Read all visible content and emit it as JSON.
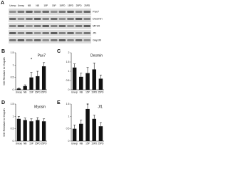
{
  "blot": {
    "panel": "A",
    "lanes": [
      "Unexp",
      "Unexp",
      "NB",
      "NB",
      "15P",
      "15P",
      "15PD",
      "15PD",
      "25PD",
      "25PD"
    ],
    "rows": [
      "Pax7",
      "Desmin",
      "MF20",
      "Jf1",
      "Gapdh"
    ]
  },
  "chart_data": [
    {
      "type": "bar",
      "panel": "B",
      "title": "Pax7",
      "ylabel": "OD Relative to Gapdh",
      "categories": [
        "Unexp",
        "NB",
        "15P",
        "15PD",
        "25PD"
      ],
      "values": [
        0.05,
        0.15,
        0.5,
        0.55,
        0.95
      ],
      "errors": [
        0.02,
        0.05,
        0.2,
        0.2,
        0.15
      ],
      "color": "#111111",
      "ylim": [
        0,
        1.5
      ],
      "yticks": [
        0,
        0.5,
        1,
        1.5
      ],
      "annotation": "*"
    },
    {
      "type": "bar",
      "panel": "C",
      "title": "Desmin",
      "categories": [
        "Unexp",
        "NB",
        "15P",
        "15PD",
        "25PD"
      ],
      "values": [
        1.2,
        0.7,
        0.9,
        1.1,
        0.6
      ],
      "errors": [
        0.2,
        0.2,
        0.3,
        0.35,
        0.2
      ],
      "color": "#111111",
      "ylim": [
        0,
        2
      ],
      "yticks": [
        0,
        0.5,
        1,
        1.5,
        2
      ]
    },
    {
      "type": "bar",
      "panel": "D",
      "title": "Myosin",
      "ylabel": "OD Relative to Gapdh",
      "categories": [
        "Unexp",
        "NB",
        "15P",
        "15PD",
        "25PD"
      ],
      "values": [
        0.9,
        0.85,
        0.8,
        0.85,
        0.8
      ],
      "errors": [
        0.1,
        0.08,
        0.1,
        0.1,
        0.1
      ],
      "color": "#111111",
      "ylim": [
        0,
        1.5
      ],
      "yticks": [
        0,
        0.5,
        1,
        1.5
      ]
    },
    {
      "type": "bar",
      "panel": "E",
      "title": "Jf1",
      "categories": [
        "Unexp",
        "NB",
        "15P",
        "15PD",
        "25PD"
      ],
      "values": [
        0.5,
        0.7,
        1.3,
        0.9,
        0.6
      ],
      "errors": [
        0.15,
        0.15,
        0.2,
        0.15,
        0.15
      ],
      "color": "#111111",
      "ylim": [
        0,
        1.5
      ],
      "yticks": [
        0,
        0.5,
        1,
        1.5
      ],
      "annotation": "*"
    }
  ]
}
